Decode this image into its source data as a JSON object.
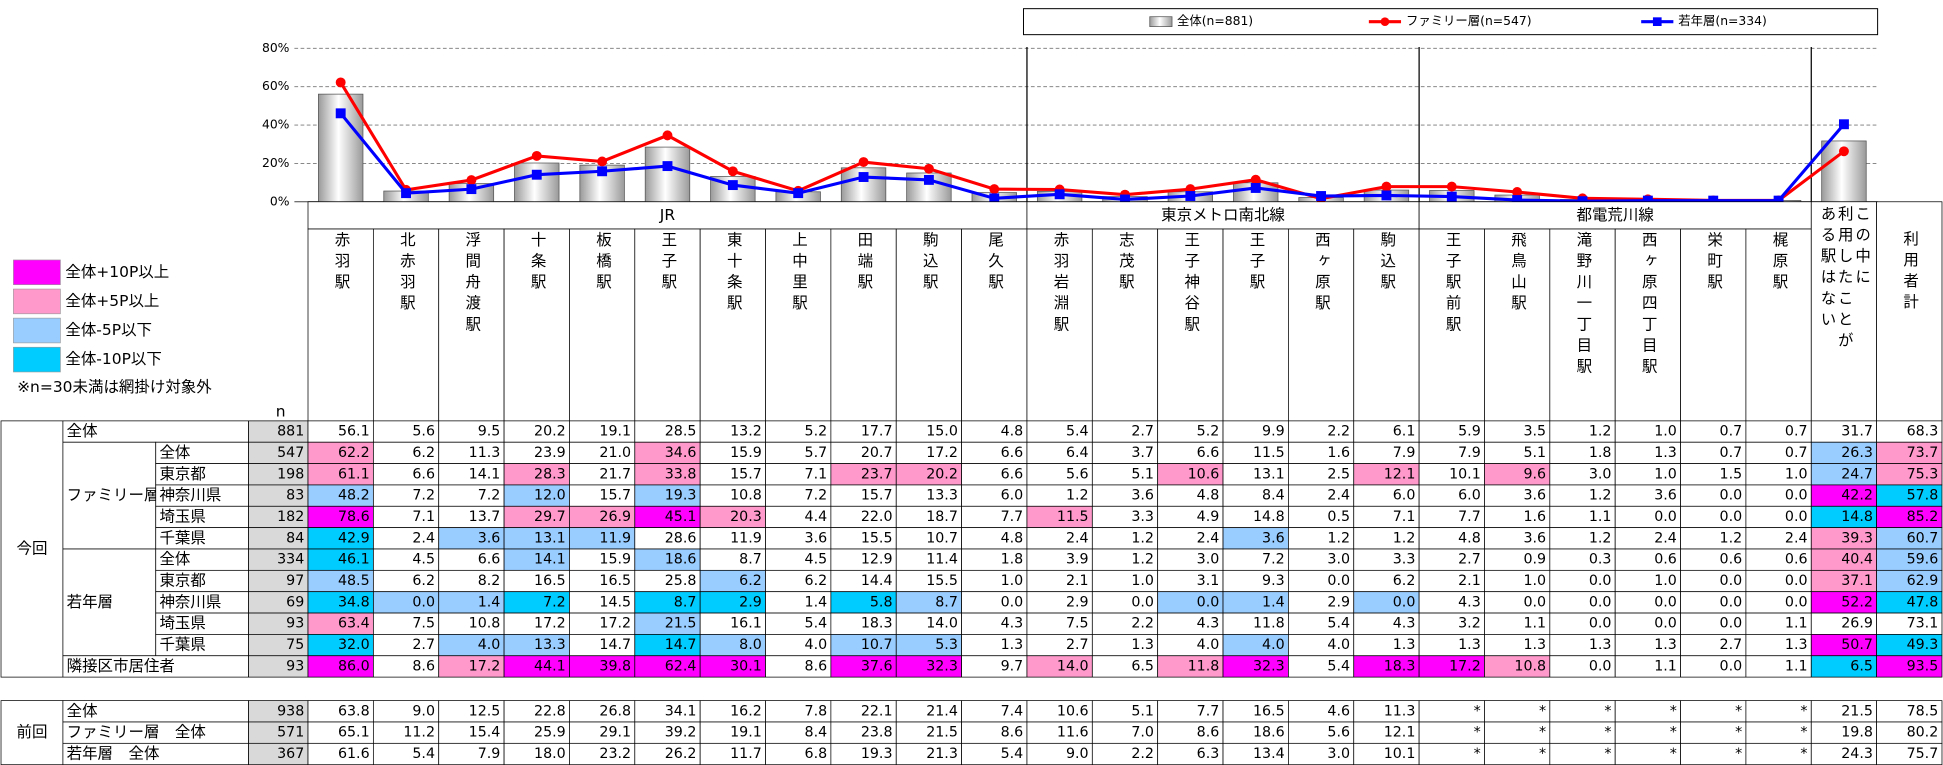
{
  "chart_data": {
    "type": "combo",
    "ylim": [
      0,
      80
    ],
    "yticks": [
      {
        "value": 0,
        "label": "0%"
      },
      {
        "value": 20,
        "label": "20%"
      },
      {
        "value": 40,
        "label": "40%"
      },
      {
        "value": 60,
        "label": "60%"
      },
      {
        "value": 80,
        "label": "80%"
      }
    ],
    "grid": true,
    "series": [
      {
        "name": "全体(n=881)",
        "type": "bar",
        "color": "#9a9a9a",
        "values": [
          56.1,
          5.6,
          9.5,
          20.2,
          19.1,
          28.5,
          13.2,
          5.2,
          17.7,
          15.0,
          4.8,
          5.4,
          2.7,
          5.2,
          9.9,
          2.2,
          6.1,
          5.9,
          3.5,
          1.2,
          1.0,
          0.7,
          0.7,
          31.7
        ]
      },
      {
        "name": "ファミリー層(n=547)",
        "type": "line",
        "marker": "circle",
        "color": "#ff0000",
        "values": [
          62.2,
          6.2,
          11.3,
          23.9,
          21.0,
          34.6,
          15.9,
          5.7,
          20.7,
          17.2,
          6.6,
          6.4,
          3.7,
          6.6,
          11.5,
          1.6,
          7.9,
          7.9,
          5.1,
          1.8,
          1.3,
          0.7,
          0.7,
          26.3
        ]
      },
      {
        "name": "若年層(n=334)",
        "type": "line",
        "marker": "square",
        "color": "#0000ff",
        "values": [
          46.1,
          4.5,
          6.6,
          14.1,
          15.9,
          18.6,
          8.7,
          4.5,
          12.9,
          11.4,
          1.8,
          3.9,
          1.2,
          3.0,
          7.2,
          3.0,
          3.3,
          2.7,
          0.9,
          0.3,
          0.6,
          0.6,
          0.6,
          40.4
        ]
      }
    ]
  },
  "legend": {
    "items": [
      {
        "label": "全体+10P以上",
        "color": "#ff00ff"
      },
      {
        "label": "全体+5P以上",
        "color": "#ff99cc"
      },
      {
        "label": "全体-5P以下",
        "color": "#99ccff"
      },
      {
        "label": "全体-10P以下",
        "color": "#00ccff"
      }
    ],
    "note": "※n=30未満は網掛け対象外"
  },
  "table": {
    "n_label": "n",
    "groups": [
      {
        "label": "JR",
        "stations": [
          "赤羽駅",
          "北赤羽駅",
          "浮間舟渡駅",
          "十条駅",
          "板橋駅",
          "王子駅",
          "東十条駅",
          "上中里駅",
          "田端駅",
          "駒込駅",
          "尾久駅"
        ]
      },
      {
        "label": "東京メトロ南北線",
        "stations": [
          "赤羽岩淵駅",
          "志茂駅",
          "王子神谷駅",
          "王子駅",
          "西ヶ原駅",
          "駒込駅"
        ]
      },
      {
        "label": "都電荒川線",
        "stations": [
          "王子駅前駅",
          "飛鳥山駅",
          "滝野川一丁目駅",
          "西ヶ原四丁目駅",
          "栄町駅",
          "梶原駅"
        ]
      }
    ],
    "extra_columns": [
      "この中に\n利用したことが\nある駅はない",
      "利用者計"
    ],
    "sections": [
      {
        "label": "今回",
        "rows": [
          {
            "label": "全体",
            "n": "881",
            "cells": [
              "56.1",
              "5.6",
              "9.5",
              "20.2",
              "19.1",
              "28.5",
              "13.2",
              "5.2",
              "17.7",
              "15.0",
              "4.8",
              "5.4",
              "2.7",
              "5.2",
              "9.9",
              "2.2",
              "6.1",
              "5.9",
              "3.5",
              "1.2",
              "1.0",
              "0.7",
              "0.7",
              "31.7",
              "68.3"
            ]
          },
          {
            "label": "ファミリー層",
            "rows": [
              {
                "label": "全体",
                "n": "547",
                "cells": [
                  "62.2",
                  "6.2",
                  "11.3",
                  "23.9",
                  "21.0",
                  "34.6",
                  "15.9",
                  "5.7",
                  "20.7",
                  "17.2",
                  "6.6",
                  "6.4",
                  "3.7",
                  "6.6",
                  "11.5",
                  "1.6",
                  "7.9",
                  "7.9",
                  "5.1",
                  "1.8",
                  "1.3",
                  "0.7",
                  "0.7",
                  "26.3",
                  "73.7"
                ],
                "shade": {
                  "0": "#ff99cc",
                  "5": "#ff99cc",
                  "23": "#99ccff",
                  "24": "#ff99cc"
                }
              },
              {
                "label": "東京都",
                "n": "198",
                "cells": [
                  "61.1",
                  "6.6",
                  "14.1",
                  "28.3",
                  "21.7",
                  "33.8",
                  "15.7",
                  "7.1",
                  "23.7",
                  "20.2",
                  "6.6",
                  "5.6",
                  "5.1",
                  "10.6",
                  "13.1",
                  "2.5",
                  "12.1",
                  "10.1",
                  "9.6",
                  "3.0",
                  "1.0",
                  "1.5",
                  "1.0",
                  "24.7",
                  "75.3"
                ],
                "shade": {
                  "0": "#ff99cc",
                  "3": "#ff99cc",
                  "5": "#ff99cc",
                  "8": "#ff99cc",
                  "9": "#ff99cc",
                  "13": "#ff99cc",
                  "16": "#ff99cc",
                  "18": "#ff99cc",
                  "23": "#99ccff",
                  "24": "#ff99cc"
                }
              },
              {
                "label": "神奈川県",
                "n": "83",
                "cells": [
                  "48.2",
                  "7.2",
                  "7.2",
                  "12.0",
                  "15.7",
                  "19.3",
                  "10.8",
                  "7.2",
                  "15.7",
                  "13.3",
                  "6.0",
                  "1.2",
                  "3.6",
                  "4.8",
                  "8.4",
                  "2.4",
                  "6.0",
                  "6.0",
                  "3.6",
                  "1.2",
                  "3.6",
                  "0.0",
                  "0.0",
                  "42.2",
                  "57.8"
                ],
                "shade": {
                  "0": "#99ccff",
                  "3": "#99ccff",
                  "5": "#99ccff",
                  "23": "#ff00ff",
                  "24": "#00ccff"
                }
              },
              {
                "label": "埼玉県",
                "n": "182",
                "cells": [
                  "78.6",
                  "7.1",
                  "13.7",
                  "29.7",
                  "26.9",
                  "45.1",
                  "20.3",
                  "4.4",
                  "22.0",
                  "18.7",
                  "7.7",
                  "11.5",
                  "3.3",
                  "4.9",
                  "14.8",
                  "0.5",
                  "7.1",
                  "7.7",
                  "1.6",
                  "1.1",
                  "0.0",
                  "0.0",
                  "0.0",
                  "14.8",
                  "85.2"
                ],
                "shade": {
                  "0": "#ff00ff",
                  "3": "#ff99cc",
                  "4": "#ff99cc",
                  "5": "#ff00ff",
                  "6": "#ff99cc",
                  "11": "#ff99cc",
                  "23": "#00ccff",
                  "24": "#ff00ff"
                }
              },
              {
                "label": "千葉県",
                "n": "84",
                "cells": [
                  "42.9",
                  "2.4",
                  "3.6",
                  "13.1",
                  "11.9",
                  "28.6",
                  "11.9",
                  "3.6",
                  "15.5",
                  "10.7",
                  "4.8",
                  "2.4",
                  "1.2",
                  "2.4",
                  "3.6",
                  "1.2",
                  "1.2",
                  "4.8",
                  "3.6",
                  "1.2",
                  "2.4",
                  "1.2",
                  "2.4",
                  "39.3",
                  "60.7"
                ],
                "shade": {
                  "0": "#00ccff",
                  "2": "#99ccff",
                  "3": "#99ccff",
                  "4": "#99ccff",
                  "14": "#99ccff",
                  "23": "#ff99cc",
                  "24": "#99ccff"
                }
              }
            ]
          },
          {
            "label": "若年層",
            "rows": [
              {
                "label": "全体",
                "n": "334",
                "cells": [
                  "46.1",
                  "4.5",
                  "6.6",
                  "14.1",
                  "15.9",
                  "18.6",
                  "8.7",
                  "4.5",
                  "12.9",
                  "11.4",
                  "1.8",
                  "3.9",
                  "1.2",
                  "3.0",
                  "7.2",
                  "3.0",
                  "3.3",
                  "2.7",
                  "0.9",
                  "0.3",
                  "0.6",
                  "0.6",
                  "0.6",
                  "40.4",
                  "59.6"
                ],
                "shade": {
                  "0": "#00ccff",
                  "3": "#99ccff",
                  "5": "#99ccff",
                  "23": "#ff99cc",
                  "24": "#99ccff"
                }
              },
              {
                "label": "東京都",
                "n": "97",
                "cells": [
                  "48.5",
                  "6.2",
                  "8.2",
                  "16.5",
                  "16.5",
                  "25.8",
                  "6.2",
                  "6.2",
                  "14.4",
                  "15.5",
                  "1.0",
                  "2.1",
                  "1.0",
                  "3.1",
                  "9.3",
                  "0.0",
                  "6.2",
                  "2.1",
                  "1.0",
                  "0.0",
                  "1.0",
                  "0.0",
                  "0.0",
                  "37.1",
                  "62.9"
                ],
                "shade": {
                  "0": "#99ccff",
                  "6": "#99ccff",
                  "23": "#ff99cc",
                  "24": "#99ccff"
                }
              },
              {
                "label": "神奈川県",
                "n": "69",
                "cells": [
                  "34.8",
                  "0.0",
                  "1.4",
                  "7.2",
                  "14.5",
                  "8.7",
                  "2.9",
                  "1.4",
                  "5.8",
                  "8.7",
                  "0.0",
                  "2.9",
                  "0.0",
                  "0.0",
                  "1.4",
                  "2.9",
                  "0.0",
                  "4.3",
                  "0.0",
                  "0.0",
                  "0.0",
                  "0.0",
                  "0.0",
                  "52.2",
                  "47.8"
                ],
                "shade": {
                  "0": "#00ccff",
                  "1": "#99ccff",
                  "2": "#99ccff",
                  "3": "#00ccff",
                  "5": "#00ccff",
                  "6": "#00ccff",
                  "8": "#00ccff",
                  "9": "#99ccff",
                  "13": "#99ccff",
                  "14": "#99ccff",
                  "16": "#99ccff",
                  "23": "#ff00ff",
                  "24": "#00ccff"
                }
              },
              {
                "label": "埼玉県",
                "n": "93",
                "cells": [
                  "63.4",
                  "7.5",
                  "10.8",
                  "17.2",
                  "17.2",
                  "21.5",
                  "16.1",
                  "5.4",
                  "18.3",
                  "14.0",
                  "4.3",
                  "7.5",
                  "2.2",
                  "4.3",
                  "11.8",
                  "5.4",
                  "4.3",
                  "3.2",
                  "1.1",
                  "0.0",
                  "0.0",
                  "0.0",
                  "1.1",
                  "26.9",
                  "73.1"
                ],
                "shade": {
                  "0": "#ff99cc",
                  "5": "#99ccff"
                }
              },
              {
                "label": "千葉県",
                "n": "75",
                "cells": [
                  "32.0",
                  "2.7",
                  "4.0",
                  "13.3",
                  "14.7",
                  "14.7",
                  "8.0",
                  "4.0",
                  "10.7",
                  "5.3",
                  "1.3",
                  "2.7",
                  "1.3",
                  "4.0",
                  "4.0",
                  "4.0",
                  "1.3",
                  "1.3",
                  "1.3",
                  "1.3",
                  "1.3",
                  "2.7",
                  "1.3",
                  "50.7",
                  "49.3"
                ],
                "shade": {
                  "0": "#00ccff",
                  "2": "#99ccff",
                  "3": "#99ccff",
                  "5": "#00ccff",
                  "6": "#99ccff",
                  "8": "#99ccff",
                  "9": "#99ccff",
                  "14": "#99ccff",
                  "23": "#ff00ff",
                  "24": "#00ccff"
                }
              }
            ]
          },
          {
            "label": "隣接区市居住者",
            "n": "93",
            "cells": [
              "86.0",
              "8.6",
              "17.2",
              "44.1",
              "39.8",
              "62.4",
              "30.1",
              "8.6",
              "37.6",
              "32.3",
              "9.7",
              "14.0",
              "6.5",
              "11.8",
              "32.3",
              "5.4",
              "18.3",
              "17.2",
              "10.8",
              "0.0",
              "1.1",
              "0.0",
              "1.1",
              "6.5",
              "93.5"
            ],
            "shade": {
              "0": "#ff00ff",
              "2": "#ff99cc",
              "3": "#ff00ff",
              "4": "#ff00ff",
              "5": "#ff00ff",
              "6": "#ff00ff",
              "8": "#ff00ff",
              "9": "#ff00ff",
              "11": "#ff99cc",
              "13": "#ff99cc",
              "14": "#ff00ff",
              "16": "#ff00ff",
              "17": "#ff00ff",
              "18": "#ff99cc",
              "23": "#00ccff",
              "24": "#ff00ff"
            }
          }
        ]
      },
      {
        "label": "前回",
        "rows": [
          {
            "label": "全体",
            "n": "938",
            "cells": [
              "63.8",
              "9.0",
              "12.5",
              "22.8",
              "26.8",
              "34.1",
              "16.2",
              "7.8",
              "22.1",
              "21.4",
              "7.4",
              "10.6",
              "5.1",
              "7.7",
              "16.5",
              "4.6",
              "11.3",
              "*",
              "*",
              "*",
              "*",
              "*",
              "*",
              "21.5",
              "78.5"
            ]
          },
          {
            "label": "ファミリー層　全体",
            "n": "571",
            "cells": [
              "65.1",
              "11.2",
              "15.4",
              "25.9",
              "29.1",
              "39.2",
              "19.1",
              "8.4",
              "23.8",
              "21.5",
              "8.6",
              "11.6",
              "7.0",
              "8.6",
              "18.6",
              "5.6",
              "12.1",
              "*",
              "*",
              "*",
              "*",
              "*",
              "*",
              "19.8",
              "80.2"
            ]
          },
          {
            "label": "若年層　全体",
            "n": "367",
            "cells": [
              "61.6",
              "5.4",
              "7.9",
              "18.0",
              "23.2",
              "26.2",
              "11.7",
              "6.8",
              "19.3",
              "21.3",
              "5.4",
              "9.0",
              "2.2",
              "6.3",
              "13.4",
              "3.0",
              "10.1",
              "*",
              "*",
              "*",
              "*",
              "*",
              "*",
              "24.3",
              "75.7"
            ]
          }
        ]
      }
    ]
  }
}
